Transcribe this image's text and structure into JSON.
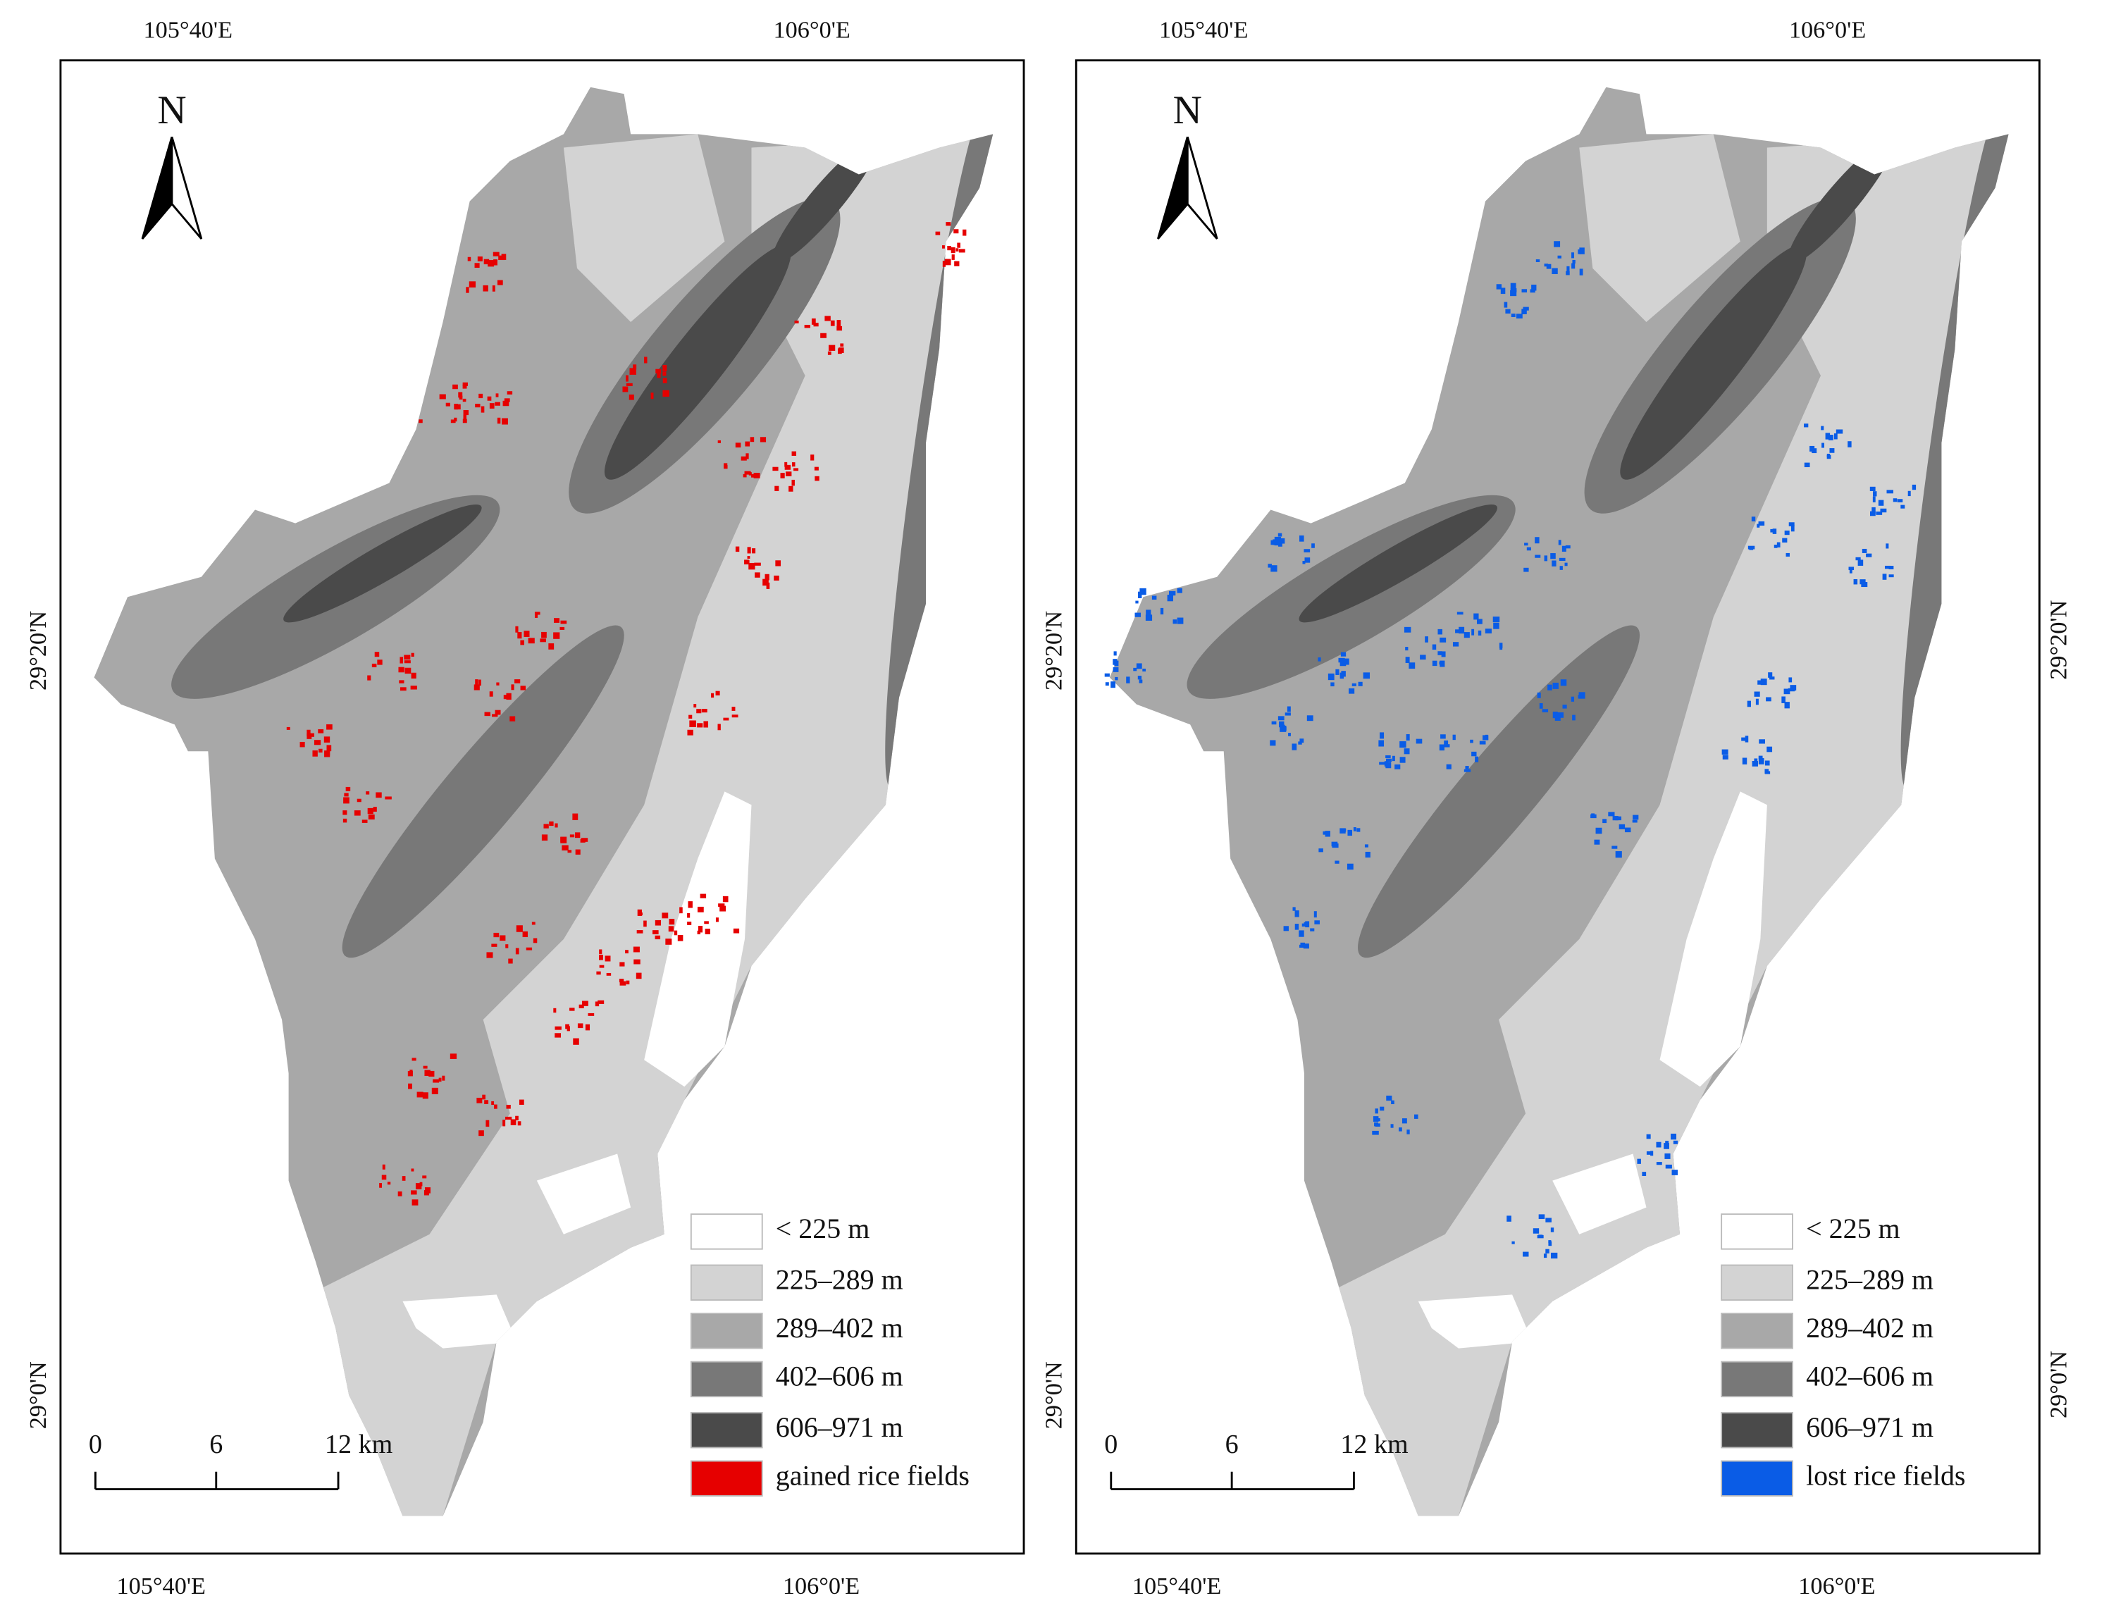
{
  "panels": [
    {
      "top_labels": [
        "105°40'E",
        "106°0'E"
      ],
      "bottom_labels": [
        "105°40'E",
        "106°0'E"
      ],
      "left_labels": [
        "29°20'N",
        "29°0'N"
      ],
      "north": "N",
      "scale_labels": [
        "0",
        "6",
        "12 km"
      ],
      "legend": [
        {
          "label": "< 225 m",
          "color": "#ffffff"
        },
        {
          "label": "225–289 m",
          "color": "#d3d3d3"
        },
        {
          "label": "289–402 m",
          "color": "#a8a8a8"
        },
        {
          "label": "402–606 m",
          "color": "#787878"
        },
        {
          "label": "606–971 m",
          "color": "#4a4a4a"
        },
        {
          "label": "gained rice fields",
          "color": "#e60000"
        }
      ]
    },
    {
      "top_labels": [
        "105°40'E",
        "106°0'E"
      ],
      "bottom_labels": [
        "105°40'E",
        "106°0'E"
      ],
      "left_labels": [
        "29°20'N",
        "29°0'N"
      ],
      "right_labels": [
        "29°20'N",
        "29°0'N"
      ],
      "north": "N",
      "scale_labels": [
        "0",
        "6",
        "12 km"
      ],
      "legend": [
        {
          "label": "< 225 m",
          "color": "#ffffff"
        },
        {
          "label": "225–289 m",
          "color": "#d3d3d3"
        },
        {
          "label": "289–402 m",
          "color": "#a8a8a8"
        },
        {
          "label": "402–606 m",
          "color": "#787878"
        },
        {
          "label": "606–971 m",
          "color": "#4a4a4a"
        },
        {
          "label": "lost rice fields",
          "color": "#0a5ce6"
        }
      ]
    }
  ]
}
